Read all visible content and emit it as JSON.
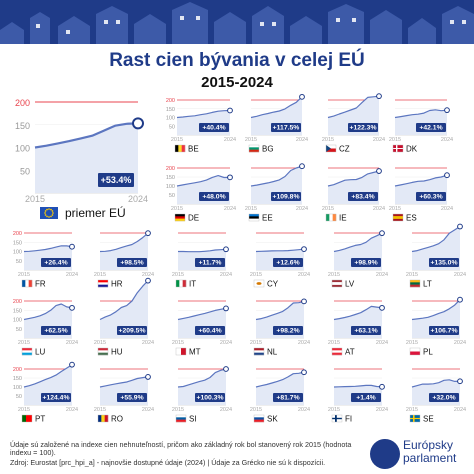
{
  "title": "Rast cien bývania v celej EÚ",
  "subtitle": "2015-2024",
  "footnote_line1": "Údaje sú založené na indexe cien nehnuteľností, pričom ako základný rok bol stanovený rok 2015 (hodnota indexu = 100).",
  "footnote_line2": "Zdroj: Eurostat [prc_hpi_a] - najnovšie dostupné údaje (2024) | Údaje za Grécko nie sú k dispozícii.",
  "logo_text": "Európsky parlament",
  "colors": {
    "title": "#1f3b88",
    "line": "#5c76c0",
    "area": "#e3e9f6",
    "badge": "#1f3b88",
    "accent": "#e8454f",
    "header": "#1f3b88"
  },
  "chart_data": {
    "type": "line",
    "x": [
      2015,
      2024
    ],
    "yticks": [
      50,
      100,
      150,
      200
    ],
    "ylim": [
      0,
      200
    ],
    "main": {
      "label": "priemer EÚ",
      "change": "+53.4%",
      "flag": "eu-flag",
      "values": [
        100,
        104,
        109,
        114,
        120,
        126,
        137,
        148,
        152,
        153
      ]
    },
    "countries": [
      {
        "code": "BE",
        "change": "+40.4%",
        "flag": "be-flag",
        "values": [
          100,
          103,
          107,
          110,
          116,
          121,
          129,
          136,
          139,
          140
        ]
      },
      {
        "code": "BG",
        "change": "+117.5%",
        "flag": "bg-flag",
        "values": [
          100,
          107,
          116,
          123,
          131,
          137,
          149,
          170,
          187,
          218
        ]
      },
      {
        "code": "CZ",
        "change": "+122.3%",
        "flag": "cz-flag",
        "values": [
          100,
          108,
          120,
          131,
          143,
          154,
          185,
          215,
          218,
          222
        ]
      },
      {
        "code": "DK",
        "change": "+42.1%",
        "flag": "dk-flag",
        "values": [
          100,
          105,
          111,
          116,
          119,
          125,
          140,
          144,
          139,
          142
        ]
      },
      {
        "code": "DE",
        "change": "+48.0%",
        "flag": "de-flag",
        "values": [
          100,
          106,
          112,
          118,
          124,
          133,
          148,
          158,
          147,
          148
        ]
      },
      {
        "code": "EE",
        "change": "+109.8%",
        "flag": "ee-flag",
        "values": [
          100,
          105,
          111,
          117,
          125,
          134,
          153,
          186,
          200,
          210
        ]
      },
      {
        "code": "IE",
        "change": "+83.4%",
        "flag": "ie-flag",
        "values": [
          100,
          107,
          120,
          132,
          135,
          136,
          148,
          167,
          175,
          183
        ]
      },
      {
        "code": "ES",
        "change": "+60.3%",
        "flag": "es-flag",
        "values": [
          100,
          106,
          113,
          120,
          126,
          128,
          135,
          145,
          150,
          160
        ]
      },
      {
        "code": "FR",
        "change": "+26.4%",
        "flag": "fr-flag",
        "values": [
          100,
          101,
          104,
          107,
          111,
          117,
          124,
          131,
          130,
          126
        ]
      },
      {
        "code": "HR",
        "change": "+98.5%",
        "flag": "hr-flag",
        "values": [
          100,
          101,
          105,
          112,
          121,
          130,
          138,
          154,
          175,
          199
        ]
      },
      {
        "code": "IT",
        "change": "+11.7%",
        "flag": "it-flag",
        "values": [
          100,
          100,
          99,
          99,
          99,
          101,
          104,
          108,
          110,
          112
        ]
      },
      {
        "code": "CY",
        "change": "+12.6%",
        "flag": "cy-flag",
        "values": [
          100,
          101,
          102,
          103,
          104,
          104,
          105,
          107,
          110,
          113
        ]
      },
      {
        "code": "LV",
        "change": "+98.9%",
        "flag": "lv-flag",
        "values": [
          100,
          106,
          114,
          124,
          133,
          138,
          150,
          172,
          185,
          199
        ]
      },
      {
        "code": "LT",
        "change": "+135.0%",
        "flag": "lt-flag",
        "values": [
          100,
          105,
          114,
          122,
          131,
          142,
          163,
          199,
          217,
          235
        ]
      },
      {
        "code": "LU",
        "change": "+62.5%",
        "flag": "lu-flag",
        "values": [
          100,
          106,
          112,
          120,
          132,
          150,
          175,
          184,
          168,
          163
        ]
      },
      {
        "code": "HU",
        "change": "+209.5%",
        "flag": "hu-flag",
        "values": [
          100,
          114,
          125,
          142,
          165,
          175,
          200,
          245,
          280,
          310
        ]
      },
      {
        "code": "MT",
        "change": "+60.4%",
        "flag": "mt-flag",
        "values": [
          100,
          106,
          112,
          119,
          126,
          133,
          141,
          149,
          155,
          160
        ]
      },
      {
        "code": "NL",
        "change": "+98.2%",
        "flag": "nl-flag",
        "values": [
          100,
          105,
          113,
          123,
          133,
          144,
          164,
          189,
          191,
          198
        ]
      },
      {
        "code": "AT",
        "change": "+63.1%",
        "flag": "at-flag",
        "values": [
          100,
          105,
          111,
          118,
          127,
          137,
          153,
          171,
          167,
          163
        ]
      },
      {
        "code": "PL",
        "change": "+106.7%",
        "flag": "pl-flag",
        "values": [
          100,
          103,
          107,
          112,
          121,
          133,
          142,
          158,
          178,
          207
        ]
      },
      {
        "code": "PT",
        "change": "+124.4%",
        "flag": "pt-flag",
        "values": [
          100,
          107,
          117,
          129,
          141,
          152,
          166,
          186,
          205,
          224
        ]
      },
      {
        "code": "RO",
        "change": "+55.9%",
        "flag": "ro-flag",
        "values": [
          100,
          106,
          112,
          118,
          123,
          128,
          137,
          147,
          152,
          156
        ]
      },
      {
        "code": "SI",
        "change": "+100.3%",
        "flag": "si-flag",
        "values": [
          100,
          103,
          112,
          121,
          130,
          138,
          153,
          180,
          193,
          200
        ]
      },
      {
        "code": "SK",
        "change": "+81.7%",
        "flag": "sk-flag",
        "values": [
          100,
          107,
          114,
          122,
          131,
          141,
          156,
          174,
          176,
          182
        ]
      },
      {
        "code": "FI",
        "change": "+1.4%",
        "flag": "fi-flag",
        "values": [
          100,
          101,
          102,
          103,
          104,
          106,
          109,
          109,
          103,
          101
        ]
      },
      {
        "code": "SE",
        "change": "+32.0%",
        "flag": "se-flag",
        "values": [
          100,
          108,
          116,
          116,
          118,
          124,
          137,
          140,
          131,
          132
        ]
      }
    ]
  }
}
